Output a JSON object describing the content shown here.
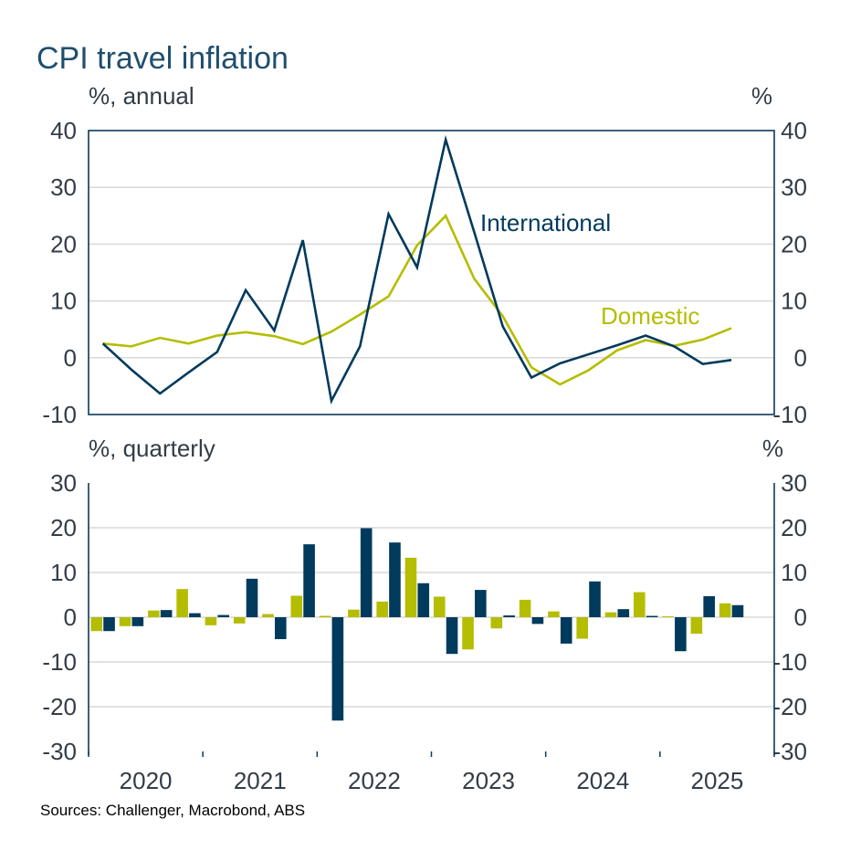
{
  "title": "CPI travel inflation",
  "source": "Sources: Challenger, Macrobond, ABS",
  "colors": {
    "international": "#003a5d",
    "domestic": "#b5bd00",
    "title": "#1f4e6e"
  },
  "chart_data": [
    {
      "type": "line",
      "unit_left": "%, annual",
      "unit_right": "%",
      "ylim": [
        -10,
        40
      ],
      "yticks": [
        -10,
        0,
        10,
        20,
        30,
        40
      ],
      "grid": true,
      "x": [
        "2020Q1",
        "2020Q2",
        "2020Q3",
        "2020Q4",
        "2021Q1",
        "2021Q2",
        "2021Q3",
        "2021Q4",
        "2022Q1",
        "2022Q2",
        "2022Q3",
        "2022Q4",
        "2023Q1",
        "2023Q2",
        "2023Q3",
        "2023Q4",
        "2024Q1",
        "2024Q2",
        "2024Q3",
        "2024Q4",
        "2025Q1",
        "2025Q2",
        "2025Q3"
      ],
      "series": [
        {
          "name": "International",
          "values": [
            2.5,
            -2.1,
            -6.3,
            -2.6,
            1.0,
            11.9,
            4.8,
            20.7,
            -7.6,
            2.0,
            25.3,
            15.9,
            38.4,
            22.1,
            5.5,
            -3.5,
            -1.0,
            0.6,
            2.2,
            3.9,
            2.0,
            -1.1,
            -0.4
          ]
        },
        {
          "name": "Domestic",
          "values": [
            2.5,
            2.0,
            3.5,
            2.5,
            3.9,
            4.5,
            3.8,
            2.4,
            4.6,
            7.6,
            10.8,
            19.8,
            25.0,
            13.9,
            7.3,
            -1.7,
            -4.7,
            -2.2,
            1.3,
            3.1,
            2.1,
            3.2,
            5.2
          ]
        }
      ]
    },
    {
      "type": "bar",
      "unit_left": "%, quarterly",
      "unit_right": "%",
      "ylim": [
        -30,
        30
      ],
      "yticks": [
        -30,
        -20,
        -10,
        0,
        10,
        20,
        30
      ],
      "grid": true,
      "x": [
        "2020Q1",
        "2020Q2",
        "2020Q3",
        "2020Q4",
        "2021Q1",
        "2021Q2",
        "2021Q3",
        "2021Q4",
        "2022Q1",
        "2022Q2",
        "2022Q3",
        "2022Q4",
        "2023Q1",
        "2023Q2",
        "2023Q3",
        "2023Q4",
        "2024Q1",
        "2024Q2",
        "2024Q3",
        "2024Q4",
        "2025Q1",
        "2025Q2",
        "2025Q3"
      ],
      "xtick_labels": [
        "2020",
        "2021",
        "2022",
        "2023",
        "2024",
        "2025"
      ],
      "series": [
        {
          "key": "domestic",
          "values": [
            -3.1,
            -2.0,
            1.5,
            6.3,
            -1.8,
            -1.4,
            0.7,
            4.8,
            0.3,
            1.7,
            3.5,
            13.3,
            4.6,
            -7.2,
            -2.5,
            3.9,
            1.3,
            -4.8,
            1.1,
            5.6,
            0.2,
            -3.7,
            3.1
          ]
        },
        {
          "key": "international",
          "values": [
            -3.1,
            -2.0,
            1.6,
            0.9,
            0.5,
            8.6,
            -4.9,
            16.3,
            -23.1,
            19.9,
            16.7,
            7.6,
            -8.2,
            6.1,
            0.4,
            -1.5,
            -5.9,
            8.0,
            1.8,
            0.3,
            -7.6,
            4.7,
            2.7
          ]
        }
      ]
    }
  ]
}
